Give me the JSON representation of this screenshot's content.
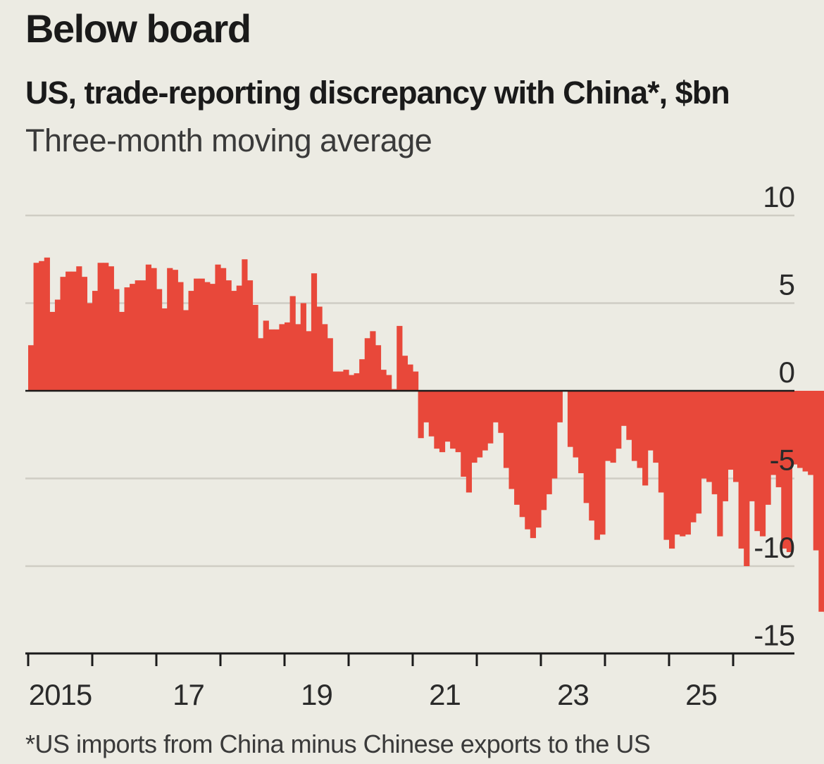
{
  "header": {
    "title": "Below board",
    "subtitle": "US, trade-reporting discrepancy with China*, $bn",
    "caption": "Three-month moving average"
  },
  "footnote": "*US imports from China minus Chinese exports to the US",
  "colors": {
    "bar": "#e8483a",
    "background": "#ecebe3",
    "grid": "#cfcdc4",
    "zero_line": "#1a1a1a"
  },
  "chart_data": {
    "type": "bar",
    "title": "US, trade-reporting discrepancy with China*, $bn",
    "subtitle": "Three-month moving average",
    "frequency": "monthly",
    "x_start": "2015-01",
    "ylim": [
      -15,
      10
    ],
    "yticks": [
      10,
      5,
      0,
      -5,
      -10,
      -15
    ],
    "ytick_labels": [
      "10",
      "5",
      "0",
      "-5",
      "-10",
      "-15"
    ],
    "xtick_labels": [
      {
        "year": 2015,
        "label": "2015"
      },
      {
        "year": 2017,
        "label": "17"
      },
      {
        "year": 2019,
        "label": "19"
      },
      {
        "year": 2021,
        "label": "21"
      },
      {
        "year": 2023,
        "label": "23"
      },
      {
        "year": 2025,
        "label": "25"
      }
    ],
    "xticks_years": [
      2015,
      2016,
      2017,
      2018,
      2019,
      2020,
      2021,
      2022,
      2023,
      2024,
      2025,
      2026
    ],
    "series": [
      {
        "name": "Trade-reporting discrepancy",
        "values": [
          2.6,
          7.3,
          7.4,
          7.6,
          4.5,
          5.2,
          6.5,
          6.8,
          6.8,
          7.1,
          6.5,
          5.0,
          5.7,
          7.3,
          7.3,
          7.1,
          5.8,
          4.5,
          5.9,
          6.1,
          6.3,
          6.3,
          7.2,
          7.0,
          5.8,
          4.7,
          7.0,
          6.9,
          6.2,
          4.6,
          5.7,
          6.4,
          6.4,
          6.2,
          6.1,
          7.2,
          7.0,
          6.3,
          5.7,
          6.0,
          7.5,
          6.3,
          4.9,
          3.0,
          4.0,
          3.5,
          3.5,
          3.8,
          3.9,
          5.4,
          3.8,
          5.0,
          3.4,
          6.7,
          4.8,
          3.8,
          3.0,
          1.1,
          1.1,
          1.2,
          0.9,
          1.0,
          1.8,
          3.0,
          3.4,
          2.6,
          1.2,
          0.9,
          0.1,
          3.7,
          2.0,
          1.5,
          1.1,
          -2.7,
          -1.8,
          -2.6,
          -3.3,
          -3.5,
          -2.9,
          -3.3,
          -3.5,
          -4.9,
          -5.8,
          -4.1,
          -3.8,
          -3.4,
          -3.0,
          -1.8,
          -2.4,
          -4.4,
          -5.6,
          -6.5,
          -7.2,
          -7.9,
          -8.4,
          -7.8,
          -6.8,
          -5.9,
          -5.0,
          -1.8,
          0.0,
          -3.2,
          -3.8,
          -4.7,
          -6.4,
          -7.4,
          -8.5,
          -8.2,
          -4.0,
          -4.1,
          -3.3,
          -2.0,
          -2.8,
          -4.0,
          -4.4,
          -5.4,
          -3.4,
          -4.1,
          -5.8,
          -8.5,
          -9.0,
          -8.2,
          -8.3,
          -8.2,
          -7.5,
          -7.0,
          -5.0,
          -5.2,
          -5.9,
          -8.3,
          -6.3,
          -4.5,
          -5.2,
          -9.0,
          -10.0,
          -6.3,
          -8.0,
          -8.3,
          -6.5,
          -4.8,
          -5.5,
          -9.0,
          -9.2,
          -4.2,
          -4.4,
          -4.6,
          -4.8,
          -9.1,
          -12.6,
          -12.7
        ]
      }
    ]
  }
}
